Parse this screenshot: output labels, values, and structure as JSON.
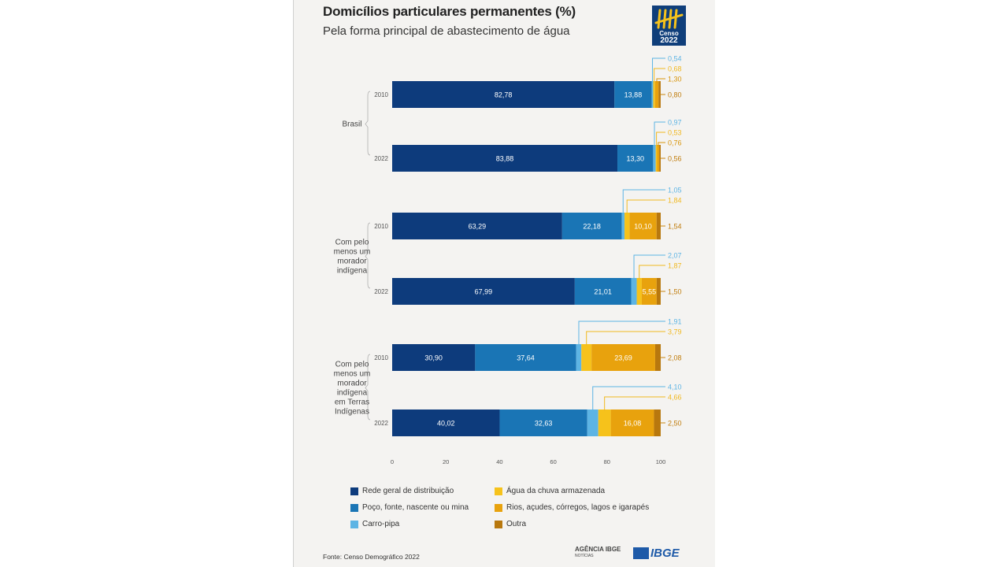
{
  "header": {
    "title": "Domicílios particulares permanentes (%)",
    "subtitle": "Pela forma principal de abastecimento de água"
  },
  "logo": {
    "censo_word": "Censo",
    "censo_year": "2022"
  },
  "source": "Fonte: Censo Demográfico 2022",
  "footer_logos": {
    "agencia": "AGÊNCIA IBGE",
    "agencia_sub": "NOTÍCIAS",
    "ibge": "IBGE"
  },
  "colors": {
    "rede": "#0d3b7c",
    "poco": "#1a75b5",
    "carro": "#5db4e4",
    "agua_chuva": "#f6c21b",
    "rios": "#e8a20d",
    "outra": "#b8780e"
  },
  "chart_data": {
    "type": "bar",
    "orientation": "horizontal",
    "stacked": true,
    "title": "Domicílios particulares permanentes (%)",
    "subtitle": "Pela forma principal de abastecimento de água",
    "xlim": [
      0,
      100
    ],
    "xticks": [
      "0",
      "20",
      "40",
      "60",
      "80",
      "100"
    ],
    "groups": [
      {
        "label": "Brasil",
        "label_lines": [
          "Brasil"
        ]
      },
      {
        "label": "Com pelo menos um morador indígena",
        "label_lines": [
          "Com pelo",
          "menos um",
          "morador",
          "indígena"
        ]
      },
      {
        "label": "Com pelo menos um morador indígena em Terras Indígenas",
        "label_lines": [
          "Com pelo",
          "menos um",
          "morador",
          "indígena",
          "em Terras",
          "Indígenas"
        ]
      }
    ],
    "categories": [
      "Brasil 2010",
      "Brasil 2022",
      "Indígena 2010",
      "Indígena 2022",
      "Terras Indígenas 2010",
      "Terras Indígenas 2022"
    ],
    "years": [
      "2010",
      "2022",
      "2010",
      "2022",
      "2010",
      "2022"
    ],
    "series": [
      {
        "name": "Rede geral de distribuição",
        "values": [
          82.78,
          83.88,
          63.29,
          67.99,
          30.9,
          40.02
        ],
        "labels": [
          "82,78",
          "83,88",
          "63,29",
          "67,99",
          "30,90",
          "40,02"
        ]
      },
      {
        "name": "Poço, fonte, nascente ou mina",
        "values": [
          13.88,
          13.3,
          22.18,
          21.01,
          37.64,
          32.63
        ],
        "labels": [
          "13,88",
          "13,30",
          "22,18",
          "21,01",
          "37,64",
          "32,63"
        ]
      },
      {
        "name": "Carro-pipa",
        "values": [
          0.54,
          0.97,
          1.05,
          2.07,
          1.91,
          4.1
        ],
        "labels": [
          "0,54",
          "0,97",
          "1,05",
          "2,07",
          "1,91",
          "4,10"
        ]
      },
      {
        "name": "Água da chuva armazenada",
        "values": [
          0.68,
          0.53,
          1.84,
          1.87,
          3.79,
          4.66
        ],
        "labels": [
          "0,68",
          "0,53",
          "1,84",
          "1,87",
          "3,79",
          "4,66"
        ]
      },
      {
        "name": "Rios, açudes, córregos, lagos e igarapés",
        "values": [
          1.3,
          0.76,
          10.1,
          5.55,
          23.69,
          16.08
        ],
        "labels": [
          "1,30",
          "0,76",
          "10,10",
          "5,55",
          "23,69",
          "16,08"
        ]
      },
      {
        "name": "Outra",
        "values": [
          0.8,
          0.56,
          1.54,
          1.5,
          2.08,
          2.5
        ],
        "labels": [
          "0,80",
          "0,56",
          "1,54",
          "1,50",
          "2,08",
          "2,50"
        ]
      }
    ],
    "legend": [
      "Rede geral de distribuição",
      "Água da chuva armazenada",
      "Poço, fonte, nascente ou mina",
      "Rios, açudes, córregos, lagos e igarapés",
      "Carro-pipa",
      "Outra"
    ]
  }
}
